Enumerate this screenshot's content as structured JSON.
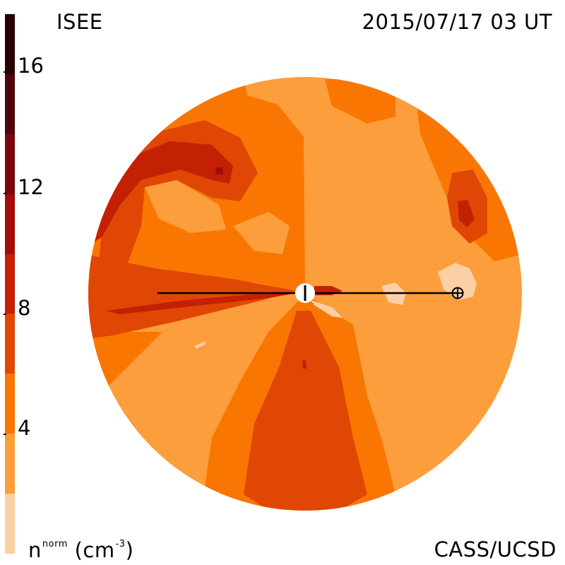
{
  "header": {
    "model_name": "ISEE",
    "datetime": "2015/07/17 03 UT"
  },
  "footer": {
    "credit": "CASS/UCSD",
    "unit_label": "n",
    "unit_sup": "norm",
    "unit_tail": "(cm",
    "unit_exp": "-3",
    "unit_close": ")"
  },
  "colorbar": {
    "range": [
      0,
      18
    ],
    "levels": [
      {
        "from": 0,
        "to": 2,
        "color": "#fccfa5"
      },
      {
        "from": 2,
        "to": 4,
        "color": "#fb9e3b"
      },
      {
        "from": 4,
        "to": 6,
        "color": "#fa7602"
      },
      {
        "from": 6,
        "to": 8,
        "color": "#e04705"
      },
      {
        "from": 8,
        "to": 10,
        "color": "#c42004"
      },
      {
        "from": 10,
        "to": 12,
        "color": "#a30d07"
      },
      {
        "from": 12,
        "to": 14,
        "color": "#7a070c"
      },
      {
        "from": 14,
        "to": 16,
        "color": "#4f050a"
      },
      {
        "from": 16,
        "to": 18,
        "color": "#280104"
      }
    ],
    "tick_labels": [
      "16",
      "12",
      "8",
      "4"
    ],
    "tick_values": [
      16,
      12,
      8,
      4
    ]
  },
  "markers": {
    "sun": "sun-marker",
    "earth": "earth-marker"
  }
}
